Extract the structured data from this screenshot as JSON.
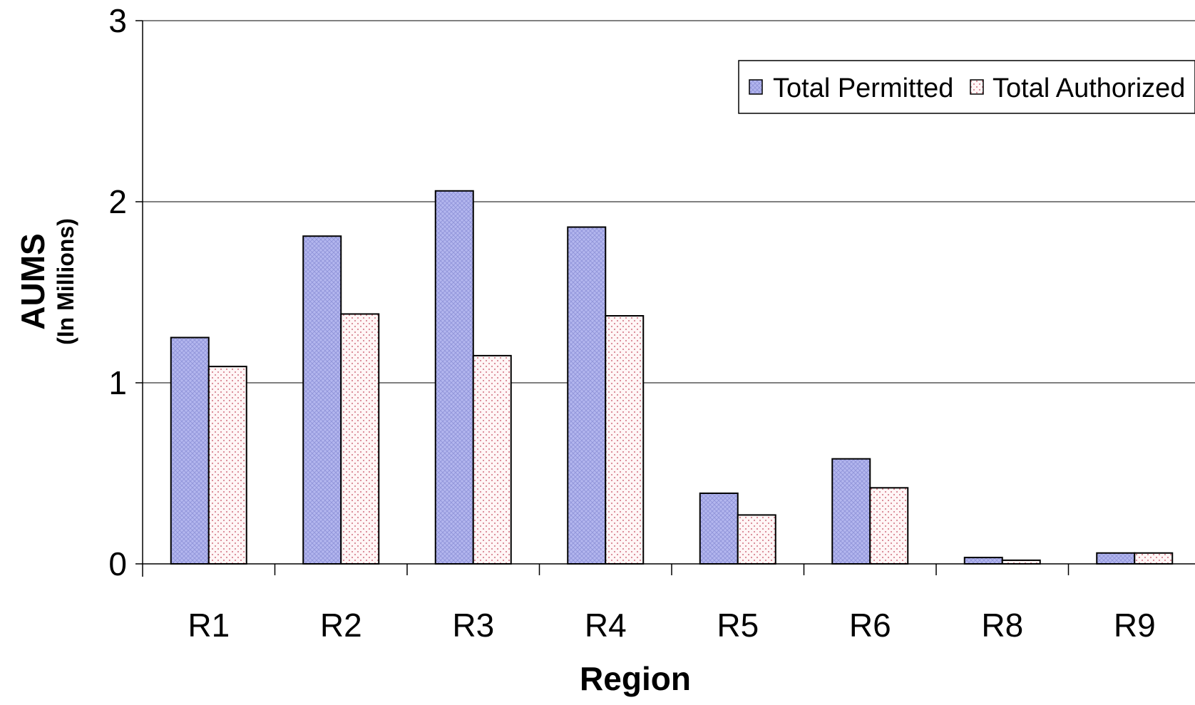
{
  "chart_data": {
    "type": "bar",
    "title": "",
    "xlabel": "Region",
    "ylabel": "AUMS",
    "ylabel_sub": "(In Millions)",
    "ylim": [
      0,
      3
    ],
    "yticks": [
      0,
      1,
      2,
      3
    ],
    "grid": true,
    "legend_position": "top-right",
    "categories": [
      "R1",
      "R2",
      "R3",
      "R4",
      "R5",
      "R6",
      "R8",
      "R9"
    ],
    "series": [
      {
        "name": "Total Permitted",
        "color": "#b3b6ee",
        "pattern": "crosshatch",
        "values": [
          1.25,
          1.81,
          2.06,
          1.86,
          0.39,
          0.58,
          0.035,
          0.06
        ]
      },
      {
        "name": "Total Authorized",
        "color": "#fff3f3",
        "pattern": "dots",
        "values": [
          1.09,
          1.38,
          1.15,
          1.37,
          0.27,
          0.42,
          0.02,
          0.06
        ]
      }
    ]
  }
}
